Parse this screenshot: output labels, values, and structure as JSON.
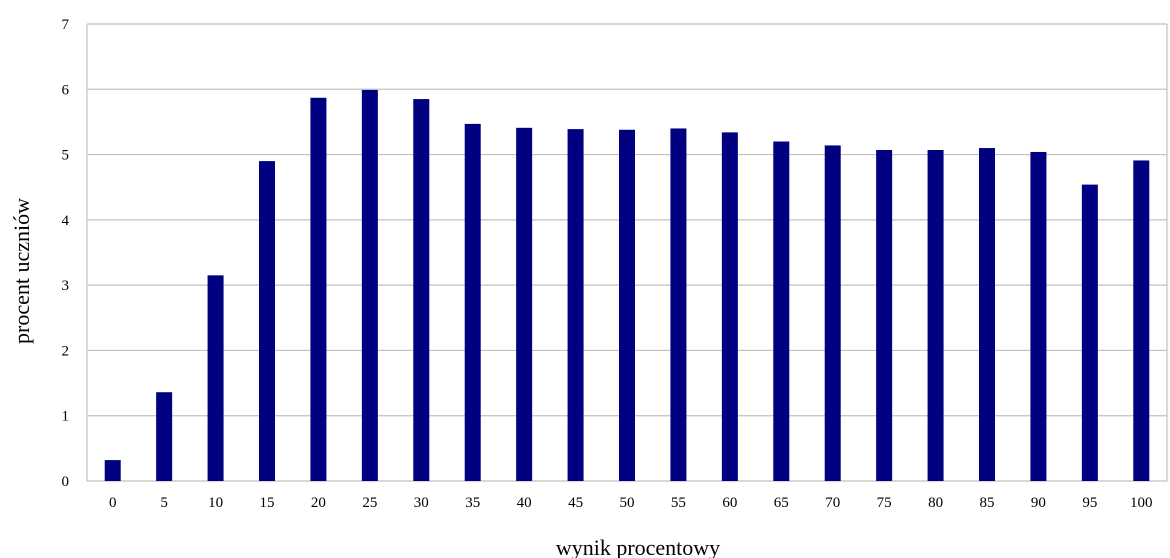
{
  "chart_data": {
    "type": "bar",
    "title": "",
    "xlabel": "wynik procentowy",
    "ylabel": "procent uczniów",
    "categories": [
      "0",
      "5",
      "10",
      "15",
      "20",
      "25",
      "30",
      "35",
      "40",
      "45",
      "50",
      "55",
      "60",
      "65",
      "70",
      "75",
      "80",
      "85",
      "90",
      "95",
      "100"
    ],
    "values": [
      0.32,
      1.36,
      3.15,
      4.9,
      5.87,
      5.99,
      5.85,
      5.47,
      5.41,
      5.39,
      5.38,
      5.4,
      5.34,
      5.2,
      5.14,
      5.07,
      5.07,
      5.1,
      5.04,
      4.54,
      4.91
    ],
    "ylim": [
      0,
      7
    ],
    "yticks": [
      "0",
      "1",
      "2",
      "3",
      "4",
      "5",
      "6",
      "7"
    ],
    "grid": true,
    "legend": "none",
    "colors": {
      "bar": "#000080",
      "grid": "#c0c0c0",
      "border": "#c0c0c0"
    }
  }
}
